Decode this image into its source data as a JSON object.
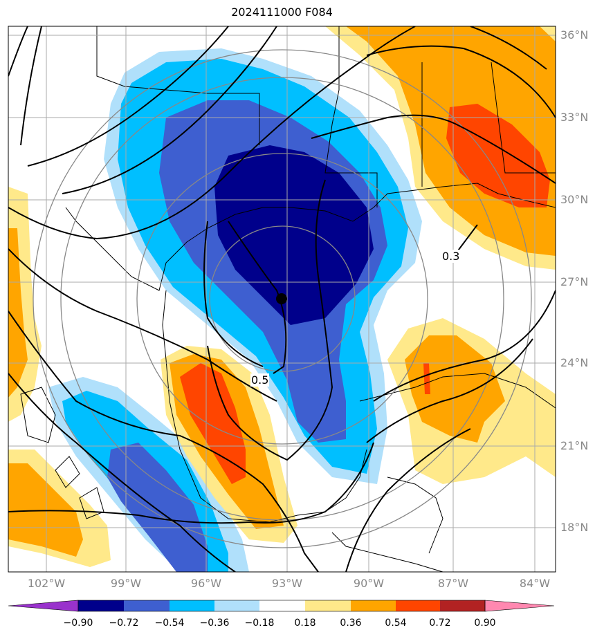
{
  "title": "2024111000 F084",
  "lat_labels": [
    "36°N",
    "33°N",
    "30°N",
    "27°N",
    "24°N",
    "21°N",
    "18°N"
  ],
  "lon_labels": [
    "102°W",
    "99°W",
    "96°W",
    "93°W",
    "90°W",
    "87°W",
    "84°W"
  ],
  "contour_labels": [
    "0.3",
    "0.5"
  ],
  "colorbar": {
    "ticks": [
      "−0.90",
      "−0.72",
      "−0.54",
      "−0.36",
      "−0.18",
      "0.18",
      "0.36",
      "0.54",
      "0.72",
      "0.90"
    ],
    "colors": [
      "#9932cc",
      "#00008b",
      "#3e5fd0",
      "#00bfff",
      "#b0e0fb",
      "#ffffff",
      "#ffe98a",
      "#ffa500",
      "#ff4500",
      "#b22222",
      "#ff88b0"
    ]
  },
  "center_marker": {
    "lat": 26.3,
    "lon": -93.3
  }
}
